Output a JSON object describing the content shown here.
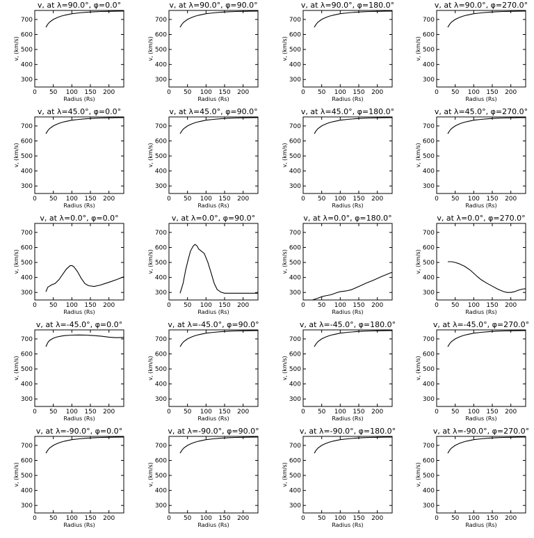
{
  "figure": {
    "xlabel": "Radius (Rs)",
    "ylabel": "v_r (km/s)",
    "title_prefix": "v_r at",
    "xlim": [
      0,
      240
    ],
    "ylim": [
      250,
      760
    ],
    "xticks": [
      0,
      50,
      100,
      150,
      200
    ],
    "yticks": [
      300,
      400,
      500,
      600,
      700
    ]
  },
  "chart_data": [
    {
      "type": "line",
      "title": "v, at λ=90.0°, φ=0.0°",
      "lambda": 90.0,
      "phi": 0.0,
      "xlabel": "Radius (Rs)",
      "ylabel": "v, (km/s)",
      "xlim": [
        0,
        240
      ],
      "ylim": [
        250,
        760
      ],
      "x": [
        30,
        35,
        40,
        50,
        60,
        70,
        80,
        100,
        120,
        140,
        160,
        180,
        200,
        220,
        240
      ],
      "y": [
        648,
        668,
        682,
        700,
        712,
        721,
        728,
        738,
        744,
        748,
        751,
        753,
        754,
        755,
        756
      ]
    },
    {
      "type": "line",
      "title": "v, at λ=90.0°, φ=90.0°",
      "lambda": 90.0,
      "phi": 90.0,
      "xlabel": "Radius (Rs)",
      "ylabel": "v, (km/s)",
      "xlim": [
        0,
        240
      ],
      "ylim": [
        250,
        760
      ],
      "x": [
        30,
        35,
        40,
        50,
        60,
        70,
        80,
        100,
        120,
        140,
        160,
        180,
        200,
        220,
        240
      ],
      "y": [
        648,
        668,
        682,
        700,
        712,
        721,
        728,
        738,
        744,
        748,
        751,
        753,
        754,
        755,
        756
      ]
    },
    {
      "type": "line",
      "title": "v, at λ=90.0°, φ=180.0°",
      "lambda": 90.0,
      "phi": 180.0,
      "xlabel": "Radius (Rs)",
      "ylabel": "v, (km/s)",
      "xlim": [
        0,
        240
      ],
      "ylim": [
        250,
        760
      ],
      "x": [
        30,
        35,
        40,
        50,
        60,
        70,
        80,
        100,
        120,
        140,
        160,
        180,
        200,
        220,
        240
      ],
      "y": [
        648,
        668,
        682,
        700,
        712,
        721,
        728,
        738,
        744,
        748,
        751,
        753,
        754,
        755,
        756
      ]
    },
    {
      "type": "line",
      "title": "v, at λ=90.0°, φ=270.0°",
      "lambda": 90.0,
      "phi": 270.0,
      "xlabel": "Radius (Rs)",
      "ylabel": "v, (km/s)",
      "xlim": [
        0,
        240
      ],
      "ylim": [
        250,
        760
      ],
      "x": [
        30,
        35,
        40,
        50,
        60,
        70,
        80,
        100,
        120,
        140,
        160,
        180,
        200,
        220,
        240
      ],
      "y": [
        648,
        668,
        682,
        700,
        712,
        721,
        728,
        738,
        744,
        748,
        751,
        753,
        754,
        755,
        756
      ]
    },
    {
      "type": "line",
      "title": "v, at λ=45.0°, φ=0.0°",
      "lambda": 45.0,
      "phi": 0.0,
      "xlabel": "Radius (Rs)",
      "ylabel": "v, (km/s)",
      "xlim": [
        0,
        240
      ],
      "ylim": [
        250,
        760
      ],
      "x": [
        30,
        35,
        40,
        50,
        60,
        70,
        80,
        100,
        120,
        140,
        160,
        180,
        200,
        220,
        240
      ],
      "y": [
        648,
        668,
        682,
        700,
        712,
        721,
        728,
        738,
        744,
        748,
        751,
        753,
        754,
        755,
        756
      ]
    },
    {
      "type": "line",
      "title": "v, at λ=45.0°, φ=90.0°",
      "lambda": 45.0,
      "phi": 90.0,
      "xlabel": "Radius (Rs)",
      "ylabel": "v, (km/s)",
      "xlim": [
        0,
        240
      ],
      "ylim": [
        250,
        760
      ],
      "x": [
        30,
        35,
        40,
        50,
        60,
        70,
        80,
        100,
        120,
        140,
        160,
        180,
        200,
        220,
        240
      ],
      "y": [
        648,
        668,
        682,
        700,
        712,
        721,
        728,
        738,
        744,
        748,
        751,
        753,
        754,
        755,
        756
      ]
    },
    {
      "type": "line",
      "title": "v, at λ=45.0°, φ=180.0°",
      "lambda": 45.0,
      "phi": 180.0,
      "xlabel": "Radius (Rs)",
      "ylabel": "v, (km/s)",
      "xlim": [
        0,
        240
      ],
      "ylim": [
        250,
        760
      ],
      "x": [
        30,
        35,
        40,
        50,
        60,
        70,
        80,
        100,
        120,
        140,
        160,
        180,
        200,
        220,
        240
      ],
      "y": [
        648,
        668,
        682,
        700,
        712,
        721,
        728,
        738,
        744,
        748,
        751,
        753,
        754,
        755,
        756
      ]
    },
    {
      "type": "line",
      "title": "v, at λ=45.0°, φ=270.0°",
      "lambda": 45.0,
      "phi": 270.0,
      "xlabel": "Radius (Rs)",
      "ylabel": "v, (km/s)",
      "xlim": [
        0,
        240
      ],
      "ylim": [
        250,
        760
      ],
      "x": [
        30,
        35,
        40,
        50,
        60,
        70,
        80,
        100,
        120,
        140,
        160,
        180,
        200,
        220,
        240
      ],
      "y": [
        648,
        668,
        682,
        700,
        712,
        721,
        728,
        738,
        744,
        748,
        751,
        753,
        754,
        755,
        756
      ]
    },
    {
      "type": "line",
      "title": "v, at λ=0.0°, φ=0.0°",
      "lambda": 0.0,
      "phi": 0.0,
      "xlabel": "Radius (Rs)",
      "ylabel": "v, (km/s)",
      "xlim": [
        0,
        240
      ],
      "ylim": [
        250,
        760
      ],
      "x": [
        30,
        35,
        45,
        55,
        65,
        75,
        85,
        95,
        100,
        105,
        115,
        125,
        135,
        145,
        160,
        175,
        190,
        205,
        220,
        240
      ],
      "y": [
        305,
        335,
        350,
        360,
        385,
        420,
        455,
        478,
        480,
        472,
        440,
        395,
        360,
        345,
        340,
        348,
        360,
        372,
        385,
        405
      ]
    },
    {
      "type": "line",
      "title": "v, at λ=0.0°, φ=90.0°",
      "lambda": 0.0,
      "phi": 90.0,
      "xlabel": "Radius (Rs)",
      "ylabel": "v, (km/s)",
      "xlim": [
        0,
        240
      ],
      "ylim": [
        250,
        760
      ],
      "x": [
        30,
        38,
        45,
        52,
        58,
        65,
        70,
        75,
        80,
        85,
        95,
        105,
        115,
        122,
        130,
        140,
        150,
        170,
        200,
        240
      ],
      "y": [
        295,
        360,
        450,
        520,
        575,
        608,
        620,
        612,
        590,
        580,
        560,
        500,
        420,
        360,
        320,
        302,
        295,
        295,
        295,
        295
      ]
    },
    {
      "type": "line",
      "title": "v, at λ=0.0°, φ=180.0°",
      "lambda": 0.0,
      "phi": 180.0,
      "xlabel": "Radius (Rs)",
      "ylabel": "v, (km/s)",
      "xlim": [
        0,
        240
      ],
      "ylim": [
        250,
        760
      ],
      "x": [
        25,
        40,
        50,
        60,
        75,
        90,
        100,
        115,
        130,
        150,
        170,
        190,
        210,
        230,
        240
      ],
      "y": [
        250,
        262,
        272,
        278,
        285,
        298,
        305,
        310,
        318,
        340,
        362,
        382,
        405,
        425,
        435
      ]
    },
    {
      "type": "line",
      "title": "v, at λ=0.0°, φ=270.0°",
      "lambda": 0.0,
      "phi": 270.0,
      "xlabel": "Radius (Rs)",
      "ylabel": "v, (km/s)",
      "xlim": [
        0,
        240
      ],
      "ylim": [
        250,
        760
      ],
      "x": [
        30,
        40,
        50,
        60,
        75,
        90,
        100,
        110,
        120,
        135,
        150,
        165,
        180,
        190,
        200,
        210,
        220,
        230,
        240
      ],
      "y": [
        505,
        505,
        500,
        492,
        475,
        450,
        428,
        405,
        385,
        362,
        342,
        322,
        306,
        300,
        300,
        305,
        315,
        322,
        325
      ]
    },
    {
      "type": "line",
      "title": "v, at λ=-45.0°, φ=0.0°",
      "lambda": -45.0,
      "phi": 0.0,
      "xlabel": "Radius (Rs)",
      "ylabel": "v, (km/s)",
      "xlim": [
        0,
        240
      ],
      "ylim": [
        250,
        760
      ],
      "x": [
        30,
        35,
        40,
        50,
        60,
        70,
        80,
        100,
        120,
        140,
        160,
        180,
        200,
        220,
        240
      ],
      "y": [
        648,
        675,
        690,
        705,
        713,
        718,
        722,
        725,
        726,
        725,
        722,
        718,
        712,
        708,
        710
      ]
    },
    {
      "type": "line",
      "title": "v, at λ=-45.0°, φ=90.0°",
      "lambda": -45.0,
      "phi": 90.0,
      "xlabel": "Radius (Rs)",
      "ylabel": "v, (km/s)",
      "xlim": [
        0,
        240
      ],
      "ylim": [
        250,
        760
      ],
      "x": [
        30,
        35,
        40,
        50,
        60,
        70,
        80,
        100,
        120,
        140,
        160,
        180,
        200,
        220,
        240
      ],
      "y": [
        648,
        668,
        682,
        700,
        712,
        721,
        728,
        738,
        744,
        748,
        751,
        753,
        754,
        755,
        756
      ]
    },
    {
      "type": "line",
      "title": "v, at λ=-45.0°, φ=180.0°",
      "lambda": -45.0,
      "phi": 180.0,
      "xlabel": "Radius (Rs)",
      "ylabel": "v, (km/s)",
      "xlim": [
        0,
        240
      ],
      "ylim": [
        250,
        760
      ],
      "x": [
        30,
        35,
        40,
        50,
        60,
        70,
        80,
        100,
        120,
        140,
        160,
        180,
        200,
        220,
        240
      ],
      "y": [
        648,
        668,
        682,
        700,
        712,
        721,
        728,
        738,
        744,
        748,
        751,
        753,
        754,
        755,
        756
      ]
    },
    {
      "type": "line",
      "title": "v, at λ=-45.0°, φ=270.0°",
      "lambda": -45.0,
      "phi": 270.0,
      "xlabel": "Radius (Rs)",
      "ylabel": "v, (km/s)",
      "xlim": [
        0,
        240
      ],
      "ylim": [
        250,
        760
      ],
      "x": [
        30,
        35,
        40,
        50,
        60,
        70,
        80,
        100,
        120,
        140,
        160,
        180,
        200,
        220,
        240
      ],
      "y": [
        648,
        668,
        682,
        700,
        712,
        721,
        728,
        738,
        744,
        748,
        751,
        753,
        754,
        755,
        756
      ]
    },
    {
      "type": "line",
      "title": "v, at λ=-90.0°, φ=0.0°",
      "lambda": -90.0,
      "phi": 0.0,
      "xlabel": "Radius (Rs)",
      "ylabel": "v, (km/s)",
      "xlim": [
        0,
        240
      ],
      "ylim": [
        250,
        760
      ],
      "x": [
        30,
        35,
        40,
        50,
        60,
        70,
        80,
        100,
        120,
        140,
        160,
        180,
        200,
        220,
        240
      ],
      "y": [
        648,
        668,
        682,
        700,
        712,
        721,
        728,
        738,
        744,
        748,
        751,
        753,
        754,
        755,
        756
      ]
    },
    {
      "type": "line",
      "title": "v, at λ=-90.0°, φ=90.0°",
      "lambda": -90.0,
      "phi": 90.0,
      "xlabel": "Radius (Rs)",
      "ylabel": "v, (km/s)",
      "xlim": [
        0,
        240
      ],
      "ylim": [
        250,
        760
      ],
      "x": [
        30,
        35,
        40,
        50,
        60,
        70,
        80,
        100,
        120,
        140,
        160,
        180,
        200,
        220,
        240
      ],
      "y": [
        648,
        668,
        682,
        700,
        712,
        721,
        728,
        738,
        744,
        748,
        751,
        753,
        754,
        755,
        756
      ]
    },
    {
      "type": "line",
      "title": "v, at λ=-90.0°, φ=180.0°",
      "lambda": -90.0,
      "phi": 180.0,
      "xlabel": "Radius (Rs)",
      "ylabel": "v, (km/s)",
      "xlim": [
        0,
        240
      ],
      "ylim": [
        250,
        760
      ],
      "x": [
        30,
        35,
        40,
        50,
        60,
        70,
        80,
        100,
        120,
        140,
        160,
        180,
        200,
        220,
        240
      ],
      "y": [
        648,
        668,
        682,
        700,
        712,
        721,
        728,
        738,
        744,
        748,
        751,
        753,
        754,
        755,
        756
      ]
    },
    {
      "type": "line",
      "title": "v, at λ=-90.0°, φ=270.0°",
      "lambda": -90.0,
      "phi": 270.0,
      "xlabel": "Radius (Rs)",
      "ylabel": "v, (km/s)",
      "xlim": [
        0,
        240
      ],
      "ylim": [
        250,
        760
      ],
      "x": [
        30,
        35,
        40,
        50,
        60,
        70,
        80,
        100,
        120,
        140,
        160,
        180,
        200,
        220,
        240
      ],
      "y": [
        648,
        668,
        682,
        700,
        712,
        721,
        728,
        738,
        744,
        748,
        751,
        753,
        754,
        755,
        756
      ]
    }
  ]
}
